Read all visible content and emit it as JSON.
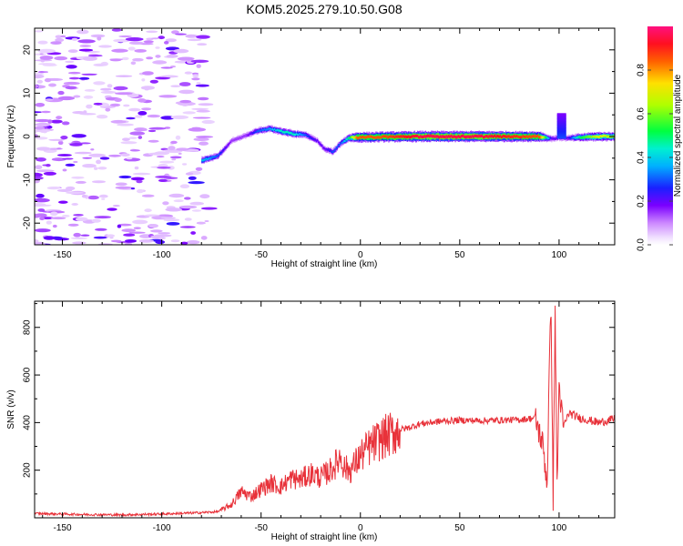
{
  "title": "KOM5.2025.279.10.50.G08",
  "chart_data": [
    {
      "type": "heatmap",
      "title": "KOM5.2025.279.10.50.G08",
      "xlabel": "Height of straight line (km)",
      "ylabel": "Frequency (Hz)",
      "xlim": [
        -164,
        128
      ],
      "ylim": [
        -25,
        25
      ],
      "xticks": [
        -150,
        -100,
        -50,
        0,
        50,
        100
      ],
      "yticks": [
        -20,
        -10,
        0,
        10,
        20
      ],
      "colorbar": {
        "label": "Normalized spectral amplitude",
        "range": [
          0,
          1
        ],
        "ticks": [
          0.0,
          0.2,
          0.4,
          0.6,
          0.8
        ],
        "colormap": "rainbow (white-violet-blue-cyan-green-yellow-red-magenta)"
      },
      "ridge": {
        "x": [
          -80,
          -72,
          -65,
          -58,
          -52,
          -46,
          -40,
          -34,
          -28,
          -22,
          -18,
          -14,
          -10,
          -6,
          -2,
          10,
          30,
          60,
          90,
          96,
          100,
          104,
          110,
          120,
          128
        ],
        "freq": [
          -5.5,
          -4.5,
          -1.0,
          0.2,
          1.3,
          1.8,
          1.2,
          0.6,
          0.4,
          -1.0,
          -3.0,
          -3.5,
          -1.5,
          -0.3,
          -0.2,
          -0.1,
          0.0,
          0.0,
          0.0,
          -0.5,
          -0.3,
          -0.4,
          -0.2,
          0.0,
          0.0
        ],
        "amplitude": [
          0.4,
          0.3,
          0.15,
          0.15,
          0.3,
          0.35,
          0.45,
          0.45,
          0.3,
          0.2,
          0.2,
          0.3,
          0.3,
          0.5,
          0.85,
          0.85,
          0.95,
          0.95,
          0.85,
          0.2,
          0.2,
          0.2,
          0.5,
          0.7,
          0.6
        ]
      }
    },
    {
      "type": "line",
      "title": "",
      "xlabel": "Height of straight line (km)",
      "ylabel": "SNR (v/v)",
      "xlim": [
        -164,
        128
      ],
      "ylim": [
        0,
        910
      ],
      "xticks": [
        -150,
        -100,
        -50,
        0,
        50,
        100
      ],
      "yticks": [
        200,
        400,
        600,
        800
      ],
      "color": "#e8323a",
      "series": [
        {
          "name": "SNR",
          "x": [
            -164,
            -140,
            -120,
            -100,
            -85,
            -72,
            -65,
            -60,
            -55,
            -50,
            -45,
            -40,
            -35,
            -30,
            -25,
            -20,
            -15,
            -12,
            -10,
            -8,
            -5,
            0,
            5,
            10,
            15,
            20,
            25,
            30,
            40,
            50,
            60,
            70,
            80,
            88,
            92,
            94,
            95,
            96,
            97,
            98,
            99,
            100,
            102,
            105,
            110,
            115,
            120,
            128
          ],
          "values": [
            18,
            14,
            12,
            16,
            20,
            25,
            55,
            110,
            90,
            120,
            145,
            130,
            165,
            160,
            185,
            170,
            200,
            230,
            260,
            210,
            200,
            260,
            300,
            330,
            350,
            370,
            380,
            395,
            405,
            410,
            408,
            410,
            412,
            420,
            300,
            140,
            600,
            900,
            70,
            880,
            130,
            560,
            380,
            440,
            420,
            410,
            400,
            415
          ]
        }
      ]
    }
  ]
}
